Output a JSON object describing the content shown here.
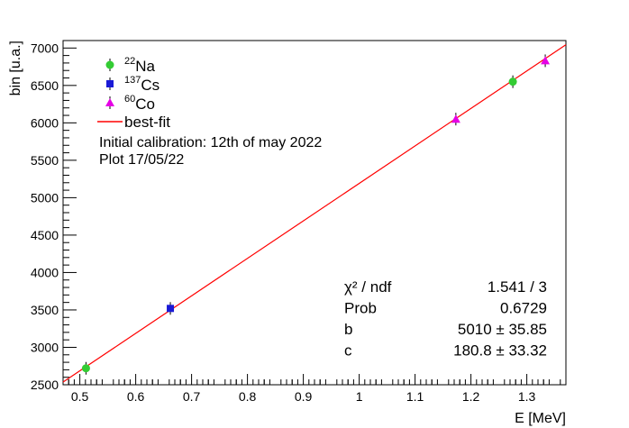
{
  "chart_data": {
    "type": "scatter",
    "xlabel": "E [MeV]",
    "ylabel": "bin [u.a.]",
    "xlim": [
      0.47,
      1.37
    ],
    "ylim": [
      2500,
      7100
    ],
    "x_ticks": [
      0.5,
      0.6,
      0.7,
      0.8,
      0.9,
      1,
      1.1,
      1.2,
      1.3
    ],
    "x_tick_labels": [
      "0.5",
      "0.6",
      "0.7",
      "0.8",
      "0.9",
      "1",
      "1.1",
      "1.2",
      "1.3"
    ],
    "y_ticks": [
      2500,
      3000,
      3500,
      4000,
      4500,
      5000,
      5500,
      6000,
      6500,
      7000
    ],
    "y_tick_labels": [
      "2500",
      "3000",
      "3500",
      "4000",
      "4500",
      "5000",
      "5500",
      "6000",
      "6500",
      "7000"
    ],
    "grid": false,
    "legend_position": "top-left",
    "legend": [
      {
        "mass": "22",
        "element": "Na",
        "marker": "circle",
        "color": "#33cc33"
      },
      {
        "mass": "137",
        "element": "Cs",
        "marker": "square",
        "color": "#1a1ad6"
      },
      {
        "mass": "60",
        "element": "Co",
        "marker": "triangle",
        "color": "#e600e6"
      },
      {
        "text": "best-fit",
        "marker": "line",
        "color": "#ff0000"
      }
    ],
    "annotations": [
      "Initial calibration: 12th of may 2022",
      "Plot 17/05/22"
    ],
    "series": [
      {
        "marker": "circle",
        "color": "#33cc33",
        "points": [
          {
            "x": 0.511,
            "y": 2720
          },
          {
            "x": 1.275,
            "y": 6550
          }
        ]
      },
      {
        "marker": "square",
        "color": "#1a1ad6",
        "points": [
          {
            "x": 0.662,
            "y": 3520
          }
        ]
      },
      {
        "marker": "triangle",
        "color": "#e600e6",
        "points": [
          {
            "x": 1.173,
            "y": 6050
          },
          {
            "x": 1.333,
            "y": 6830
          }
        ]
      }
    ],
    "fit": {
      "color": "#ff0000",
      "slope": 5010,
      "intercept": 180.8,
      "x_range": [
        0.47,
        1.37
      ]
    },
    "stats": [
      {
        "label": "χ² / ndf",
        "value": "1.541 / 3"
      },
      {
        "label": "Prob",
        "value": "0.6729"
      },
      {
        "label": "b",
        "value": "5010 ± 35.85"
      },
      {
        "label": "c",
        "value": "180.8 ± 33.32"
      }
    ]
  }
}
